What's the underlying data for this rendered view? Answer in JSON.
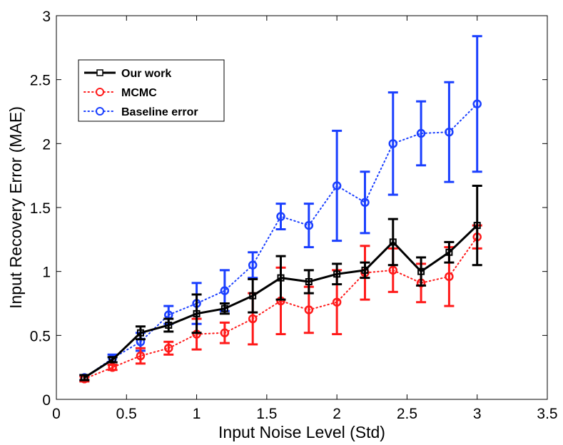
{
  "chart_data": {
    "type": "line",
    "title": "",
    "xlabel": "Input Noise Level (Std)",
    "ylabel": "Input Recovery Error (MAE)",
    "xlim": [
      0,
      3.5
    ],
    "ylim": [
      0,
      3
    ],
    "xticks": [
      "0",
      "0.5",
      "1",
      "1.5",
      "2",
      "2.5",
      "3",
      "3.5"
    ],
    "yticks": [
      "0",
      "0.5",
      "1",
      "1.5",
      "2",
      "2.5",
      "3"
    ],
    "xtick_values": [
      0,
      0.5,
      1,
      1.5,
      2,
      2.5,
      3,
      3.5
    ],
    "ytick_values": [
      0,
      0.5,
      1,
      1.5,
      2,
      2.5,
      3
    ],
    "grid": false,
    "legend_position": "top-left",
    "x": [
      0.2,
      0.4,
      0.6,
      0.8,
      1.0,
      1.2,
      1.4,
      1.6,
      1.8,
      2.0,
      2.2,
      2.4,
      2.6,
      2.8,
      3.0
    ],
    "series": [
      {
        "name": "Our work",
        "color": "#000000",
        "line": "solid",
        "marker": "square",
        "values": [
          0.17,
          0.31,
          0.52,
          0.58,
          0.67,
          0.71,
          0.81,
          0.95,
          0.92,
          0.98,
          1.01,
          1.23,
          1.0,
          1.15,
          1.36
        ],
        "errors": [
          0.02,
          0.02,
          0.05,
          0.05,
          0.15,
          0.04,
          0.13,
          0.17,
          0.09,
          0.08,
          0.06,
          0.18,
          0.11,
          0.08,
          0.31
        ]
      },
      {
        "name": "MCMC",
        "color": "#ff1a1a",
        "line": "dotted",
        "marker": "circle",
        "values": [
          0.16,
          0.25,
          0.34,
          0.4,
          0.51,
          0.52,
          0.63,
          0.77,
          0.7,
          0.76,
          0.99,
          1.01,
          0.91,
          0.96,
          1.27
        ],
        "errors": [
          0.02,
          0.02,
          0.06,
          0.05,
          0.12,
          0.08,
          0.2,
          0.26,
          0.18,
          0.25,
          0.21,
          0.17,
          0.15,
          0.23,
          0.09
        ]
      },
      {
        "name": "Baseline error",
        "color": "#1a3fff",
        "line": "dotted",
        "marker": "circle",
        "values": [
          0.17,
          0.32,
          0.45,
          0.66,
          0.75,
          0.85,
          1.05,
          1.43,
          1.36,
          1.67,
          1.54,
          2.0,
          2.08,
          2.09,
          2.31
        ],
        "errors": [
          0.02,
          0.03,
          0.07,
          0.07,
          0.16,
          0.16,
          0.1,
          0.1,
          0.17,
          0.43,
          0.24,
          0.4,
          0.25,
          0.39,
          0.53
        ]
      }
    ]
  }
}
